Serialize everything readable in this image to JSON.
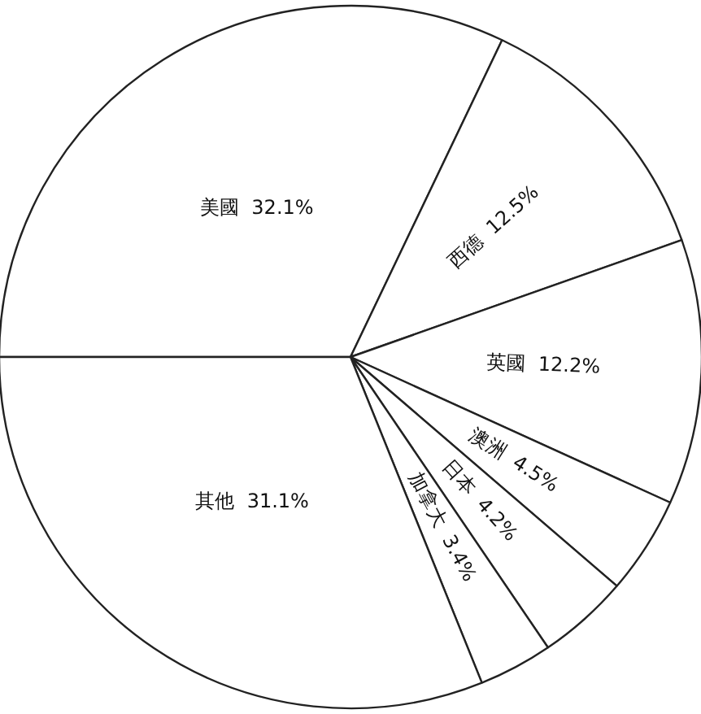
{
  "chart_data": {
    "type": "pie",
    "categories": [
      "美國",
      "西德",
      "英國",
      "澳洲",
      "日本",
      "加拿大",
      "其他"
    ],
    "values": [
      32.1,
      12.5,
      12.2,
      4.5,
      4.2,
      3.4,
      31.1
    ],
    "colors": [
      "#ffffff",
      "#ffffff",
      "#ffffff",
      "#ffffff",
      "#ffffff",
      "#ffffff",
      "#ffffff"
    ],
    "value_labels": [
      "32.1%",
      "12.5%",
      "12.2%",
      "4.5%",
      "4.2%",
      "3.4%",
      "31.1%"
    ],
    "legend": false
  }
}
